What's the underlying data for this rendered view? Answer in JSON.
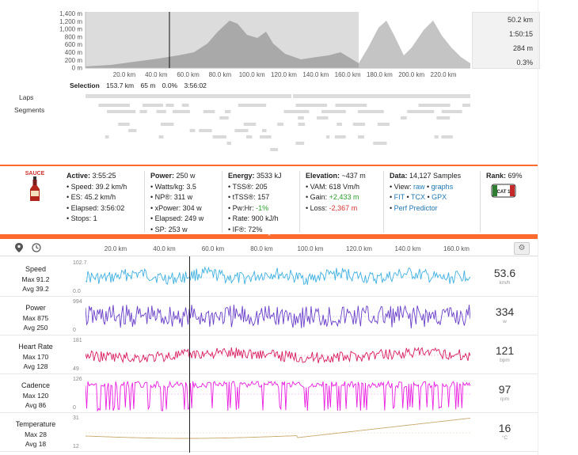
{
  "elevation_overview": {
    "y_ticks": [
      "1,400 m",
      "1,200 m",
      "1,000 m",
      "800 m",
      "600 m",
      "400 m",
      "200 m",
      "0 m"
    ],
    "x_ticks": [
      "20.0 km",
      "40.0 km",
      "60.0 km",
      "80.0 km",
      "100.0 km",
      "120.0 km",
      "140.0 km",
      "160.0 km",
      "180.0 km",
      "200.0 km",
      "220.0 km"
    ],
    "colors": {
      "selected_bg": "#dcdcdc",
      "fill": "#a9a9a9",
      "fill_outside": "#c4c4c4"
    }
  },
  "selection_stats": {
    "distance": "50.2 km",
    "time": "1:50:15",
    "elevation": "284 m",
    "grade": "0.3%"
  },
  "selection_row": {
    "label": "Selection",
    "distance": "153.7 km",
    "elevation": "65 m",
    "grade": "0.0%",
    "time": "3:56:02"
  },
  "tracks_labels": {
    "laps": "Laps",
    "segments": "Segments"
  },
  "sauce": {
    "label": "SAUCE"
  },
  "stats": {
    "active": {
      "title": "Active:",
      "value": "3:55:25",
      "items": [
        "• Speed: 39.2 km/h",
        "• ES: 45.2 km/h",
        "• Elapsed: 3:56:02",
        "• Stops: 1"
      ]
    },
    "power": {
      "title": "Power:",
      "value": "250 w",
      "items": [
        "• Watts/kg: 3.5",
        "• NP®: 311 w",
        "• xPower: 304 w",
        "• Elapsed: 249 w",
        "• SP: 253 w"
      ]
    },
    "energy": {
      "title": "Energy:",
      "value": "3533 kJ",
      "items": [
        "• TSS®: 205",
        "• tTSS®: 157",
        "• Pw:Hr: ",
        "• Rate: 900 kJ/h",
        "• IF®: 72%"
      ],
      "pwhr_value": "-1%"
    },
    "elevation": {
      "title": "Elevation:",
      "value": "~437 m",
      "items": [
        "• VAM: 618 Vm/h"
      ],
      "gain_label": "• Gain: ",
      "gain_value": "+2,433 m",
      "loss_label": "• Loss: ",
      "loss_value": "-2,367 m"
    },
    "data": {
      "title": "Data:",
      "value": "14,127 Samples",
      "view_label": "• View: ",
      "view_raw": "raw",
      "view_sep": " • ",
      "view_graphs": "graphs",
      "fit": "FIT",
      "tcx": "TCX",
      "gpx": "GPX",
      "perf": "Perf Predictor"
    },
    "rank": {
      "title": "Rank:",
      "value": "69%",
      "badge": "CAT 1"
    }
  },
  "main_axis": {
    "x_ticks": [
      "20.0 km",
      "40.0 km",
      "60.0 km",
      "80.0 km",
      "100.0 km",
      "120.0 km",
      "140.0 km",
      "160.0 km"
    ]
  },
  "tracks": [
    {
      "name": "Speed",
      "max": "Max 91.2",
      "avg": "Avg 39.2",
      "ymax": "102.7",
      "ymin": "0.0",
      "current": "53.6",
      "unit": "km/h",
      "color": "#3fb0e0"
    },
    {
      "name": "Power",
      "max": "Max 875",
      "avg": "Avg 250",
      "ymax": "994",
      "ymin": "0",
      "current": "334",
      "unit": "w",
      "color": "#6a3fc8"
    },
    {
      "name": "Heart Rate",
      "max": "Max 170",
      "avg": "Avg 128",
      "ymax": "181",
      "ymin": "49",
      "current": "121",
      "unit": "bpm",
      "color": "#d81b60"
    },
    {
      "name": "Cadence",
      "max": "Max 120",
      "avg": "Avg 86",
      "ymax": "126",
      "ymin": "0",
      "current": "97",
      "unit": "rpm",
      "color": "#e91ee0"
    },
    {
      "name": "Temperature",
      "max": "Max 28",
      "avg": "Avg 18",
      "ymax": "31",
      "ymin": "12",
      "current": "16",
      "unit": "°C",
      "color": "#c9a86a"
    }
  ]
}
